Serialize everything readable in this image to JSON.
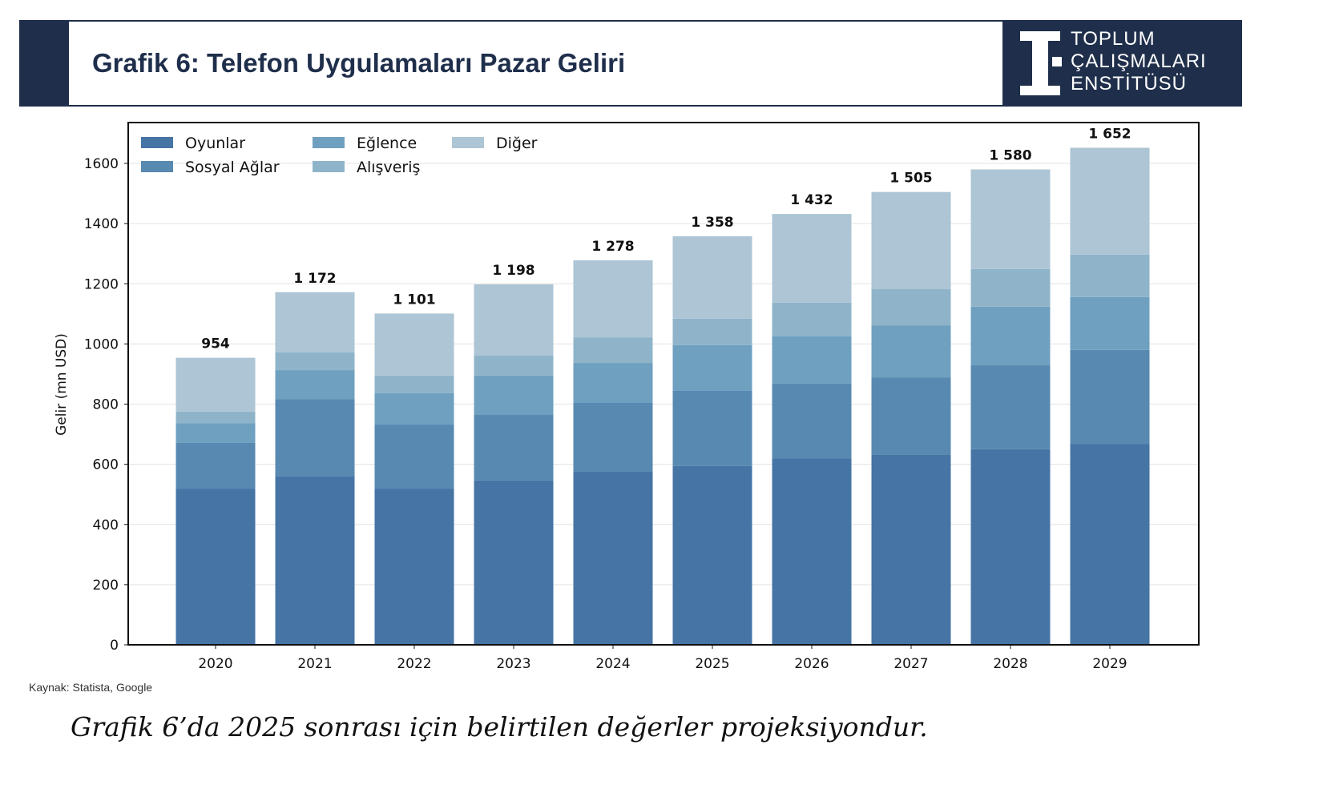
{
  "header": {
    "title": "Grafik 6: Telefon Uygulamaları Pazar Geliri",
    "logo_lines": [
      "TOPLUM",
      "ÇALIŞMALARI",
      "ENSTİTÜSÜ"
    ]
  },
  "source": "Kaynak: Statista, Google",
  "note": "Grafik 6’da 2025 sonrası için belirtilen değerler projeksiyondur.",
  "chart_data": {
    "type": "bar",
    "stacked": true,
    "ylabel": "Gelir (mn USD)",
    "ylim": [
      0,
      1740
    ],
    "yticks": [
      0,
      200,
      400,
      600,
      800,
      1000,
      1200,
      1400,
      1600
    ],
    "grid": true,
    "legend_position": "top-left",
    "categories": [
      "2020",
      "2021",
      "2022",
      "2023",
      "2024",
      "2025",
      "2026",
      "2027",
      "2028",
      "2029"
    ],
    "series": [
      {
        "name": "Oyunlar",
        "color": "#4674a5",
        "values": [
          519,
          559,
          519,
          546,
          575,
          594,
          620,
          631,
          650,
          668
        ]
      },
      {
        "name": "Sosyal Ağlar",
        "color": "#5889b1",
        "values": [
          152,
          258,
          213,
          218,
          229,
          250,
          248,
          258,
          279,
          312
        ]
      },
      {
        "name": "Eğlence",
        "color": "#6fa0c0",
        "values": [
          66,
          96,
          104,
          131,
          133,
          152,
          157,
          173,
          195,
          176
        ]
      },
      {
        "name": "Alışveriş",
        "color": "#8fb4c9",
        "values": [
          38,
          59,
          59,
          66,
          85,
          88,
          112,
          120,
          125,
          141
        ]
      },
      {
        "name": "Diğer",
        "color": "#adc5d5",
        "values": [
          179,
          200,
          206,
          237,
          256,
          274,
          295,
          323,
          331,
          355
        ]
      }
    ],
    "totals": [
      954,
      1172,
      1101,
      1198,
      1278,
      1358,
      1432,
      1505,
      1580,
      1652
    ],
    "total_labels": [
      "954",
      "1 172",
      "1 101",
      "1 198",
      "1 278",
      "1 358",
      "1 432",
      "1 505",
      "1 580",
      "1 652"
    ]
  }
}
